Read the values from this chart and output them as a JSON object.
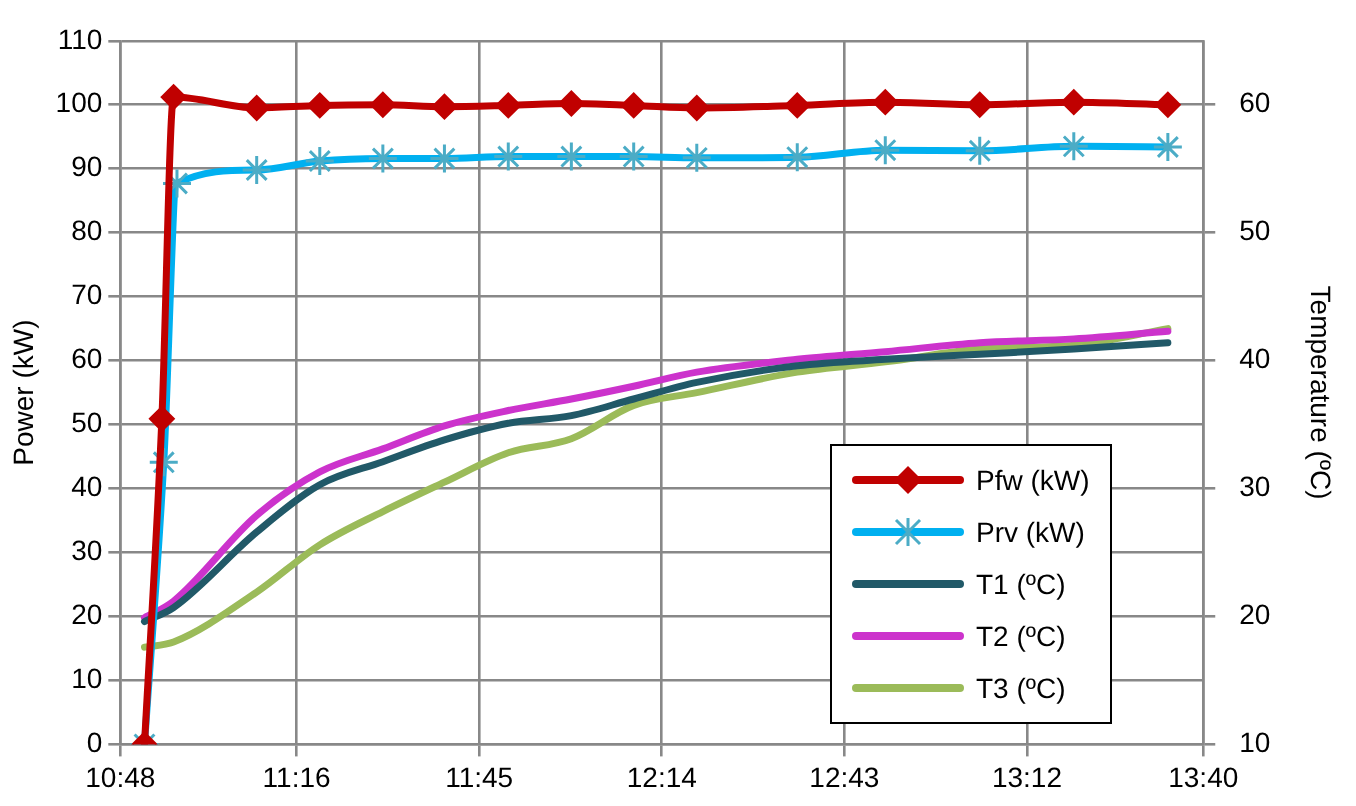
{
  "chart_data": {
    "type": "line",
    "ylabel": "Power (kW)",
    "y2label": "Temperature (ºC)",
    "xlim": [
      10.8,
      13.6667
    ],
    "xticks": [
      {
        "value": 10.8,
        "label": "10:48"
      },
      {
        "value": 11.2667,
        "label": "11:16"
      },
      {
        "value": 11.75,
        "label": "11:45"
      },
      {
        "value": 12.2333,
        "label": "12:14"
      },
      {
        "value": 12.7167,
        "label": "12:43"
      },
      {
        "value": 13.2,
        "label": "13:12"
      },
      {
        "value": 13.6667,
        "label": "13:40"
      }
    ],
    "ylim": [
      0,
      110
    ],
    "yticks": [
      0,
      10,
      20,
      30,
      40,
      50,
      60,
      70,
      80,
      90,
      100,
      110
    ],
    "y2lim": [
      10,
      65
    ],
    "y2ticks": [
      10,
      20,
      30,
      40,
      50,
      60
    ],
    "grid": true,
    "legend": "bottom right",
    "line_style": "solid",
    "series": [
      {
        "name": "Pfw (kW)",
        "color": "#c00000",
        "marker": "diamond",
        "x": [
          10.864,
          10.91,
          10.941,
          11.161,
          11.328,
          11.495,
          11.658,
          11.827,
          11.994,
          12.159,
          12.326,
          12.592,
          12.825,
          13.075,
          13.324,
          13.573
        ],
        "values": [
          0,
          50.9,
          101.2,
          99.5,
          99.9,
          100,
          99.7,
          99.9,
          100.2,
          99.9,
          99.5,
          99.9,
          100.4,
          100,
          100.4,
          100
        ]
      },
      {
        "name": "Prv (kW)",
        "color": "#00b0f0",
        "marker": "cross",
        "x": [
          10.864,
          10.915,
          10.95,
          11.161,
          11.328,
          11.495,
          11.658,
          11.827,
          11.994,
          12.159,
          12.326,
          12.592,
          12.825,
          13.075,
          13.324,
          13.573
        ],
        "values": [
          0,
          44.1,
          87.7,
          89.8,
          91.2,
          91.6,
          91.6,
          91.9,
          91.9,
          91.9,
          91.7,
          91.8,
          92.9,
          92.8,
          93.5,
          93.4
        ]
      },
      {
        "name": "T1 (ºC)",
        "color": "#215968",
        "marker": "none",
        "axis": "y2",
        "x": [
          10.864,
          10.941,
          11.161,
          11.328,
          11.495,
          11.658,
          11.827,
          11.994,
          12.159,
          12.326,
          12.592,
          12.825,
          13.075,
          13.324,
          13.573
        ],
        "values": [
          19.6,
          20.7,
          26.6,
          30.3,
          32.1,
          33.8,
          35.1,
          35.7,
          37,
          38.3,
          39.6,
          40.1,
          40.5,
          40.9,
          41.4
        ]
      },
      {
        "name": "T2 (ºC)",
        "color": "#cc33cc",
        "marker": "none",
        "axis": "y2",
        "x": [
          10.864,
          10.941,
          11.161,
          11.328,
          11.495,
          11.658,
          11.827,
          11.994,
          12.159,
          12.326,
          12.592,
          12.825,
          13.075,
          13.324,
          13.573
        ],
        "values": [
          19.9,
          21.2,
          27.9,
          31.3,
          33.1,
          34.9,
          36.1,
          37,
          38,
          39.1,
          40.1,
          40.7,
          41.4,
          41.7,
          42.3
        ]
      },
      {
        "name": "T3 (ºC)",
        "color": "#9bbb59",
        "marker": "none",
        "axis": "y2",
        "x": [
          10.864,
          10.941,
          11.161,
          11.328,
          11.495,
          11.658,
          11.827,
          11.994,
          12.159,
          12.326,
          12.592,
          12.825,
          13.075,
          13.324,
          13.573
        ],
        "values": [
          17.6,
          18,
          21.9,
          25.6,
          28.2,
          30.5,
          32.8,
          33.9,
          36.5,
          37.5,
          39.1,
          39.9,
          40.9,
          41.2,
          42.5
        ]
      }
    ]
  }
}
